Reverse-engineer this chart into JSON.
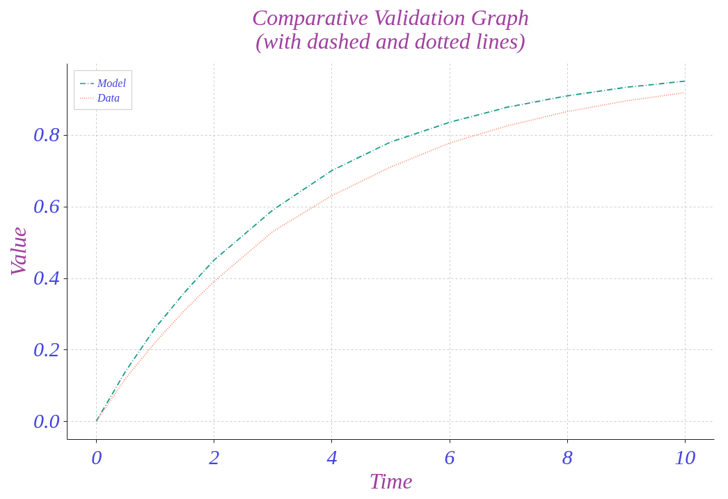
{
  "chart_data": {
    "type": "line",
    "title": "Comparative Validation Graph\n(with dashed and dotted lines)",
    "xlabel": "Time",
    "ylabel": "Value",
    "x": [
      0,
      0.5,
      1,
      1.5,
      2,
      3,
      4,
      5,
      6,
      7,
      8,
      9,
      10
    ],
    "series": [
      {
        "name": "Model",
        "color": "#1a9a8a",
        "line_style": "dashdot",
        "values": [
          0,
          0.14,
          0.26,
          0.36,
          0.45,
          0.59,
          0.7,
          0.78,
          0.835,
          0.878,
          0.909,
          0.933,
          0.95
        ]
      },
      {
        "name": "Data",
        "color": "#ff7f66",
        "line_style": "dotted",
        "values": [
          0,
          0.12,
          0.22,
          0.31,
          0.39,
          0.53,
          0.63,
          0.71,
          0.777,
          0.826,
          0.865,
          0.895,
          0.918
        ]
      }
    ],
    "xlim": [
      -0.5,
      10.5
    ],
    "ylim": [
      -0.05,
      1.0
    ],
    "xticks": [
      0,
      2,
      4,
      6,
      8,
      10
    ],
    "yticks": [
      {
        "value": 0,
        "label": "0.0"
      },
      {
        "value": 0.2,
        "label": "0.2"
      },
      {
        "value": 0.4,
        "label": "0.4"
      },
      {
        "value": 0.6,
        "label": "0.6"
      },
      {
        "value": 0.8,
        "label": "0.8"
      }
    ],
    "grid": true,
    "legend": "top left",
    "marker": "none"
  }
}
